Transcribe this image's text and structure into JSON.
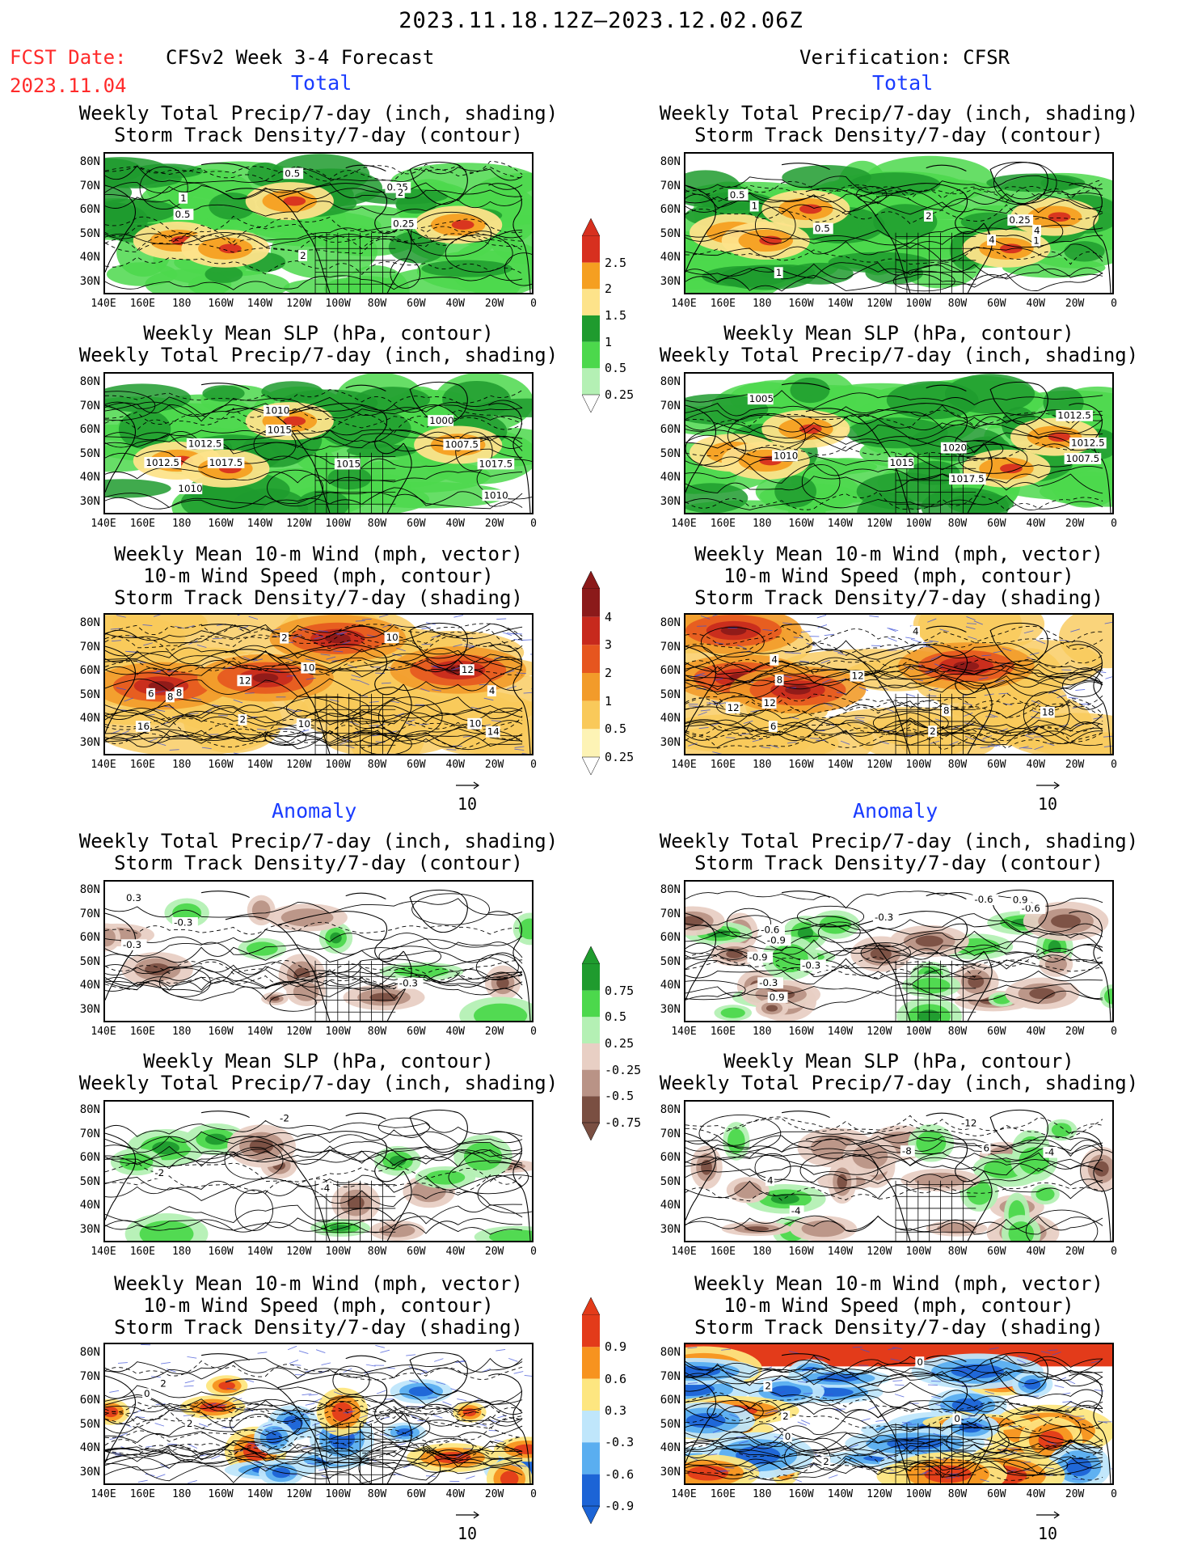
{
  "header": {
    "date_range": "2023.11.18.12Z–2023.12.02.06Z",
    "fcst_label": "FCST Date:",
    "fcst_date": "2023.11.04",
    "left_model": "CFSv2 Week 3-4 Forecast",
    "right_model": "Verification: CFSR"
  },
  "sections": {
    "total": "Total",
    "anomaly": "Anomaly"
  },
  "panel_titles": {
    "precip_storm": [
      "Weekly Total Precip/7-day (inch, shading)",
      "Storm Track Density/7-day (contour)"
    ],
    "slp_precip": [
      "Weekly Mean SLP (hPa, contour)",
      "Weekly Total Precip/7-day (inch, shading)"
    ],
    "wind_storm": [
      "Weekly Mean 10-m Wind (mph, vector)",
      "10-m Wind Speed (mph, contour)",
      "Storm Track Density/7-day (shading)"
    ]
  },
  "axes": {
    "lat_labels": [
      "80N",
      "70N",
      "60N",
      "50N",
      "40N",
      "30N"
    ],
    "lon_labels": [
      "140E",
      "160E",
      "180",
      "160W",
      "140W",
      "120W",
      "100W",
      "80W",
      "60W",
      "40W",
      "20W",
      "0"
    ]
  },
  "vector_ref": "10",
  "colorbars": {
    "total_precip": {
      "labels": [
        "2.5",
        "2",
        "1.5",
        "1",
        "0.5",
        "0.25"
      ],
      "colors": [
        "#d7301f",
        "#f59f21",
        "#fde38a",
        "#1f9b2e",
        "#4cd84c",
        "#b4f0b4"
      ]
    },
    "total_storm": {
      "labels": [
        "4",
        "3",
        "2",
        "1",
        "0.5",
        "0.25"
      ],
      "colors": [
        "#8b1a1a",
        "#c7291d",
        "#e6561f",
        "#f29b2a",
        "#f9c95a",
        "#fdf3b5"
      ]
    },
    "anom_precip": {
      "labels": [
        "0.75",
        "0.5",
        "0.25",
        "-0.25",
        "-0.5",
        "-0.75"
      ],
      "colors": [
        "#1f9b2e",
        "#4cd84c",
        "#b4f0b4",
        "#e8cfc4",
        "#b99386",
        "#7a4f42"
      ]
    },
    "anom_storm": {
      "labels": [
        "0.9",
        "0.6",
        "0.3",
        "-0.3",
        "-0.6",
        "-0.9"
      ],
      "colors": [
        "#e33b1a",
        "#f7931f",
        "#fde680",
        "#bfe6fb",
        "#5aaef0",
        "#1c64d6"
      ]
    }
  },
  "contour_labels": {
    "left": {
      "p1": [
        "0.25",
        "0.5",
        "2",
        "1",
        "0.25",
        "0.5",
        "2"
      ],
      "p2": [
        "1015",
        "1017.5",
        "1000",
        "1010",
        "1010",
        "1012.5",
        "1017.5",
        "1015",
        "1012.5",
        "1010",
        "1007.5"
      ],
      "p3": [
        "6",
        "10",
        "12",
        "8",
        "16",
        "14",
        "4",
        "10",
        "10",
        "10",
        "8",
        "2",
        "2",
        "12"
      ],
      "p4": [
        "-0.3",
        "0.3",
        "-0.3",
        "-0.3"
      ],
      "p5": [
        "-2",
        "-4",
        "-2"
      ],
      "p6": [
        "2",
        "0",
        "2"
      ]
    },
    "right": {
      "p1": [
        "0.25",
        "2",
        "4",
        "1",
        "0.5",
        "0.5",
        "1",
        "4",
        "1"
      ],
      "p2": [
        "1015",
        "1005",
        "1007.5",
        "1010",
        "1012.5",
        "1012.5",
        "1020",
        "1017.5"
      ],
      "p3": [
        "6",
        "8",
        "12",
        "4",
        "2",
        "18",
        "12",
        "4",
        "8",
        "12"
      ],
      "p4": [
        "-0.6",
        "-0.9",
        "-0.3",
        "0.9",
        "-0.3",
        "0.9",
        "-0.6",
        "-0.3",
        "-0.6",
        "-0.9"
      ],
      "p5": [
        "-8",
        "-12",
        "-4",
        "4",
        "-4",
        "6"
      ],
      "p6": [
        "2",
        "0",
        "2",
        "2",
        "0",
        "0"
      ]
    }
  }
}
